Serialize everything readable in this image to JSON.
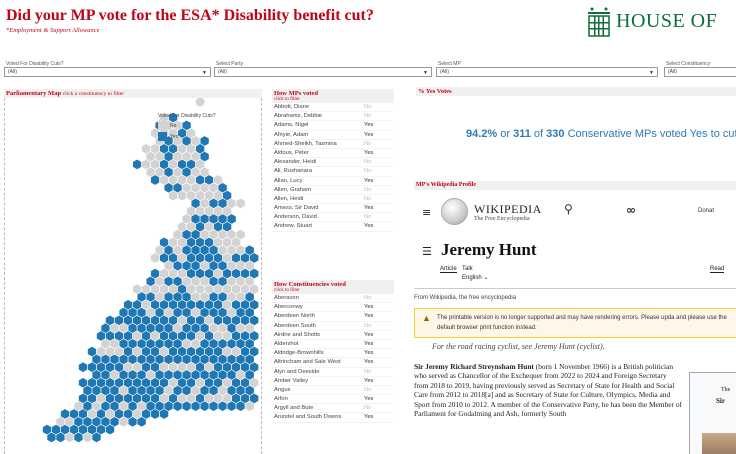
{
  "header": {
    "title": "Did your MP vote for the ESA* Disability benefit cut?",
    "subtitle": "*Employment & Support Allowance",
    "logo_text": "HOUSE OF"
  },
  "filters": [
    {
      "label": "Voted For Disability Cuts?",
      "value": "(All)"
    },
    {
      "label": "Select Party",
      "value": "(All)"
    },
    {
      "label": "Select MP",
      "value": "(All)"
    },
    {
      "label": "Select Constituency",
      "value": "(All)"
    }
  ],
  "map": {
    "title": "Parliamentary Map",
    "hint": "click a constituency to filter",
    "legend_title": "Voted For Disability Cuts?",
    "legend": [
      {
        "label": "No",
        "color": "#d3d3d3"
      },
      {
        "label": "Yes",
        "color": "#1f77b4"
      }
    ]
  },
  "mps": {
    "title": "How MPs voted",
    "hint": "click to filter",
    "rows": [
      {
        "name": "Abbott, Diane",
        "vote": "No"
      },
      {
        "name": "Abrahams, Debbie",
        "vote": "No"
      },
      {
        "name": "Adams, Nigel",
        "vote": "Yes"
      },
      {
        "name": "Afriyie, Adam",
        "vote": "Yes"
      },
      {
        "name": "Ahmed-Sheikh, Tasmina",
        "vote": "No"
      },
      {
        "name": "Aldous, Peter",
        "vote": "Yes"
      },
      {
        "name": "Alexander, Heidi",
        "vote": "No"
      },
      {
        "name": "Ali, Rushanara",
        "vote": "No"
      },
      {
        "name": "Allan, Lucy",
        "vote": "Yes"
      },
      {
        "name": "Allen, Graham",
        "vote": "No"
      },
      {
        "name": "Allen, Heidi",
        "vote": "No"
      },
      {
        "name": "Amess, Sir David",
        "vote": "Yes"
      },
      {
        "name": "Anderson, David",
        "vote": "No"
      },
      {
        "name": "Andrew, Stuart",
        "vote": "Yes"
      }
    ]
  },
  "constituencies": {
    "title": "How Constituencies voted",
    "hint": "click to filter",
    "rows": [
      {
        "name": "Aberavon",
        "vote": "No"
      },
      {
        "name": "Aberconwy",
        "vote": "Yes"
      },
      {
        "name": "Aberdeen North",
        "vote": "Yes"
      },
      {
        "name": "Aberdeen South",
        "vote": "No"
      },
      {
        "name": "Airdrie and Shotts",
        "vote": "Yes"
      },
      {
        "name": "Aldershot",
        "vote": "Yes"
      },
      {
        "name": "Aldridge-Brownhills",
        "vote": "Yes"
      },
      {
        "name": "Altrincham and Sale West",
        "vote": "Yes"
      },
      {
        "name": "Alyn and Deeside",
        "vote": "No"
      },
      {
        "name": "Amber Valley",
        "vote": "Yes"
      },
      {
        "name": "Angus",
        "vote": "No"
      },
      {
        "name": "Arfon",
        "vote": "Yes"
      },
      {
        "name": "Argyll and Bute",
        "vote": "No"
      },
      {
        "name": "Arundel and South Downs",
        "vote": "Yes"
      }
    ]
  },
  "yes_votes": {
    "title": "% Yes Votes",
    "pct": "94.2%",
    "or": "or",
    "count": "311",
    "of": "of",
    "total": "330",
    "rest": "Conservative MPs voted Yes to cut the"
  },
  "wiki": {
    "section_title": "MP's Wikipedia Profile",
    "brand": "WIKIPEDIA",
    "tagline": "The Free Encyclopedia",
    "donate": "Donat",
    "title": "Jeremy Hunt",
    "tab_article": "Article",
    "tab_talk": "Talk",
    "lang": "English",
    "read": "Read",
    "from": "From Wikipedia, the free encyclopedia",
    "warning": "The printable version is no longer supported and may have rendering errors. Please upda and please use the default browser print function instead.",
    "hatnote": "For the road racing cyclist, see Jeremy Hunt (cyclist).",
    "lead_bold": "Sir Jeremy Richard Streynsham Hunt",
    "lead": "(born 1 November 1966) is a British politician who served as Chancellor of the Exchequer from 2022 to 2024 and Foreign Secretary from 2018 to 2019, having previously served as Secretary of State for Health and Social Care from 2012 to 2018[a] and as Secretary of State for Culture, Olympics, Media and Sport from 2010 to 2012. A member of the Conservative Party, he has been the Member of Parliament for Godalming and Ash, formerly South",
    "infobox_t1": "The",
    "infobox_t2": "Sir"
  }
}
